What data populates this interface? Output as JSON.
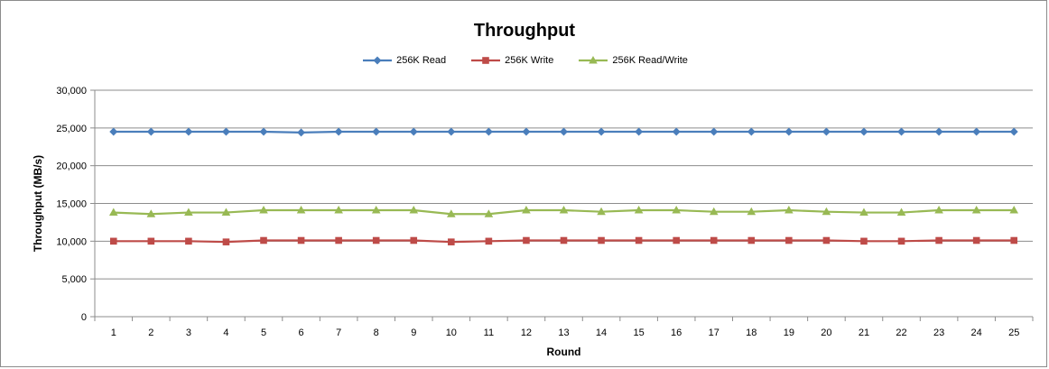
{
  "chart_data": {
    "type": "line",
    "title": "Throughput",
    "xlabel": "Round",
    "ylabel": "Throughput (MB/s)",
    "ylim": [
      0,
      30000
    ],
    "yticks": [
      "0",
      "5,000",
      "10,000",
      "15,000",
      "20,000",
      "25,000",
      "30,000"
    ],
    "ytick_values": [
      0,
      5000,
      10000,
      15000,
      20000,
      25000,
      30000
    ],
    "grid": "horizontal",
    "legend_position": "top",
    "categories": [
      "1",
      "2",
      "3",
      "4",
      "5",
      "6",
      "7",
      "8",
      "9",
      "10",
      "11",
      "12",
      "13",
      "14",
      "15",
      "16",
      "17",
      "18",
      "19",
      "20",
      "21",
      "22",
      "23",
      "24",
      "25"
    ],
    "series": [
      {
        "name": "256K Read",
        "color": "#4a7ebb",
        "marker": "diamond",
        "values": [
          24500,
          24500,
          24500,
          24500,
          24500,
          24400,
          24500,
          24500,
          24500,
          24500,
          24500,
          24500,
          24500,
          24500,
          24500,
          24500,
          24500,
          24500,
          24500,
          24500,
          24500,
          24500,
          24500,
          24500,
          24500
        ]
      },
      {
        "name": "256K Write",
        "color": "#be4b48",
        "marker": "square",
        "values": [
          10000,
          10000,
          10000,
          9900,
          10100,
          10100,
          10100,
          10100,
          10100,
          9900,
          10000,
          10100,
          10100,
          10100,
          10100,
          10100,
          10100,
          10100,
          10100,
          10100,
          10000,
          10000,
          10100,
          10100,
          10100
        ]
      },
      {
        "name": "256K Read/Write",
        "color": "#98b954",
        "marker": "triangle",
        "values": [
          13800,
          13600,
          13800,
          13800,
          14100,
          14100,
          14100,
          14100,
          14100,
          13600,
          13600,
          14100,
          14100,
          13900,
          14100,
          14100,
          13900,
          13900,
          14100,
          13900,
          13800,
          13800,
          14100,
          14100,
          14100
        ]
      }
    ]
  }
}
